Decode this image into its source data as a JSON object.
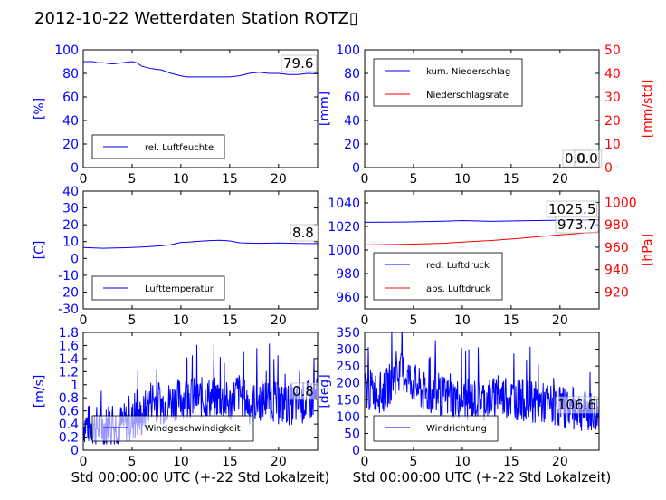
{
  "figure": {
    "title": "2012-10-22 Wetterdaten Station ROTZ▯"
  },
  "chart_data": [
    {
      "id": "humidity",
      "type": "line",
      "ylabel": "[%]",
      "xlabel": "",
      "xlim": [
        0,
        24
      ],
      "ylim": [
        0,
        100
      ],
      "xticks": [
        0,
        5,
        10,
        15,
        20
      ],
      "yticks": [
        0,
        20,
        40,
        60,
        80,
        100
      ],
      "legend": "bottom-left",
      "series": [
        {
          "name": "rel. Luftfeuchte",
          "color": "#0000ff",
          "x": [
            0,
            1,
            1.5,
            2,
            3,
            4,
            5,
            5.5,
            6,
            7,
            8,
            9,
            10,
            10.5,
            11,
            12,
            13,
            14,
            15,
            16,
            17,
            18,
            19,
            20,
            21,
            22,
            23,
            24
          ],
          "y": [
            90,
            90,
            89,
            89,
            88,
            89,
            90,
            89,
            86,
            84,
            83,
            80,
            78,
            77,
            77,
            77,
            77,
            77,
            77,
            78,
            80,
            81,
            80,
            80,
            79,
            79,
            80,
            79.6
          ]
        }
      ],
      "annotations": [
        "79.6"
      ]
    },
    {
      "id": "precip",
      "type": "line",
      "ylabel": "[mm]",
      "ylabel_right": "[mm/std]",
      "xlim": [
        0,
        24
      ],
      "ylim": [
        0,
        100
      ],
      "ylim_right": [
        0,
        50
      ],
      "xticks": [
        0,
        5,
        10,
        15,
        20
      ],
      "yticks": [
        0,
        20,
        40,
        60,
        80,
        100
      ],
      "yticks_right": [
        0,
        10,
        20,
        30,
        40,
        50
      ],
      "legend": "top-left",
      "series": [
        {
          "name": "kum. Niederschlag",
          "color": "#0000ff",
          "axis": "left",
          "x": [
            0,
            24
          ],
          "y": [
            0,
            0
          ]
        },
        {
          "name": "Niederschlagsrate",
          "color": "#ff0000",
          "axis": "right",
          "x": [
            0,
            24
          ],
          "y": [
            0,
            0
          ]
        }
      ],
      "annotations": [
        "0.0",
        "0.0"
      ]
    },
    {
      "id": "temperature",
      "type": "line",
      "ylabel": "[C]",
      "xlim": [
        0,
        24
      ],
      "ylim": [
        -30,
        40
      ],
      "xticks": [
        0,
        5,
        10,
        15,
        20
      ],
      "yticks": [
        -30,
        -20,
        -10,
        0,
        10,
        20,
        30,
        40
      ],
      "legend": "bottom-left",
      "series": [
        {
          "name": "Lufttemperatur",
          "color": "#0000ff",
          "x": [
            0,
            2,
            4,
            6,
            8,
            9,
            10,
            11,
            12,
            13,
            14,
            15,
            16,
            17,
            18,
            20,
            22,
            24
          ],
          "y": [
            6.5,
            6,
            6.3,
            6.8,
            7.5,
            8.2,
            9.5,
            9.8,
            10.2,
            10.6,
            10.8,
            10.4,
            9.3,
            9.1,
            9,
            9.2,
            8.9,
            8.8
          ]
        }
      ],
      "annotations": [
        "8.8"
      ]
    },
    {
      "id": "pressure",
      "type": "line",
      "ylabel_right": "[hPa]",
      "xlim": [
        0,
        24
      ],
      "ylim": [
        950,
        1050
      ],
      "ylim_right": [
        905,
        1010
      ],
      "xticks": [
        0,
        5,
        10,
        15,
        20
      ],
      "yticks": [
        960,
        980,
        1000,
        1020,
        1040
      ],
      "yticks_right": [
        920,
        940,
        960,
        980,
        1000
      ],
      "legend": "bottom-left",
      "series": [
        {
          "name": "red. Luftdruck",
          "color": "#0000ff",
          "axis": "left",
          "x": [
            0,
            4,
            8,
            10,
            13,
            16,
            20,
            24
          ],
          "y": [
            1023.5,
            1023.8,
            1024.4,
            1025,
            1024.3,
            1024.8,
            1025.3,
            1025.5
          ]
        },
        {
          "name": "abs. Luftdruck",
          "color": "#ff0000",
          "axis": "right",
          "x": [
            0,
            4,
            8,
            10,
            13,
            16,
            20,
            24
          ],
          "y": [
            962,
            962.5,
            963.5,
            964.5,
            966,
            968,
            971,
            973.7
          ]
        }
      ],
      "annotations": [
        "1025.5",
        "973.7"
      ]
    },
    {
      "id": "windspeed",
      "type": "line",
      "ylabel": "[m/s]",
      "xlabel": "Std 00:00:00 UTC (+-22 Std Lokalzeit)",
      "xlim": [
        0,
        24
      ],
      "ylim": [
        0,
        1.8
      ],
      "xticks": [
        0,
        5,
        10,
        15,
        20
      ],
      "yticks": [
        0,
        0.2,
        0.4,
        0.6,
        0.8,
        1.0,
        1.2,
        1.4,
        1.6,
        1.8
      ],
      "legend": "bottom-left",
      "series": [
        {
          "name": "Windgeschwindigkeit",
          "color": "#0000ff",
          "noisy": true,
          "x": [
            0,
            2,
            4,
            6,
            7,
            8,
            10,
            12,
            14,
            15,
            15.8,
            17,
            19,
            20,
            22,
            24
          ],
          "y": [
            0.4,
            0.35,
            0.4,
            0.5,
            0.8,
            0.7,
            0.8,
            0.8,
            0.8,
            0.7,
            0.9,
            0.7,
            0.8,
            0.7,
            0.7,
            0.8
          ]
        }
      ],
      "annotations": [
        "0.8"
      ]
    },
    {
      "id": "winddir",
      "type": "line",
      "ylabel": "[deg]",
      "xlabel": "Std 00:00:00 UTC (+-22 Std Lokalzeit)",
      "xlim": [
        0,
        24
      ],
      "ylim": [
        0,
        350
      ],
      "xticks": [
        0,
        5,
        10,
        15,
        20
      ],
      "yticks": [
        0,
        50,
        100,
        150,
        200,
        250,
        300,
        350
      ],
      "legend": "bottom-left",
      "series": [
        {
          "name": "Windrichtung",
          "color": "#0000ff",
          "noisy": true,
          "x": [
            0,
            2,
            3,
            4,
            5,
            6,
            8,
            10,
            12,
            14,
            16,
            18,
            20,
            22,
            24
          ],
          "y": [
            180,
            170,
            220,
            230,
            200,
            170,
            160,
            150,
            150,
            160,
            150,
            140,
            130,
            120,
            106.6
          ]
        }
      ],
      "annotations": [
        "106.6"
      ]
    }
  ]
}
